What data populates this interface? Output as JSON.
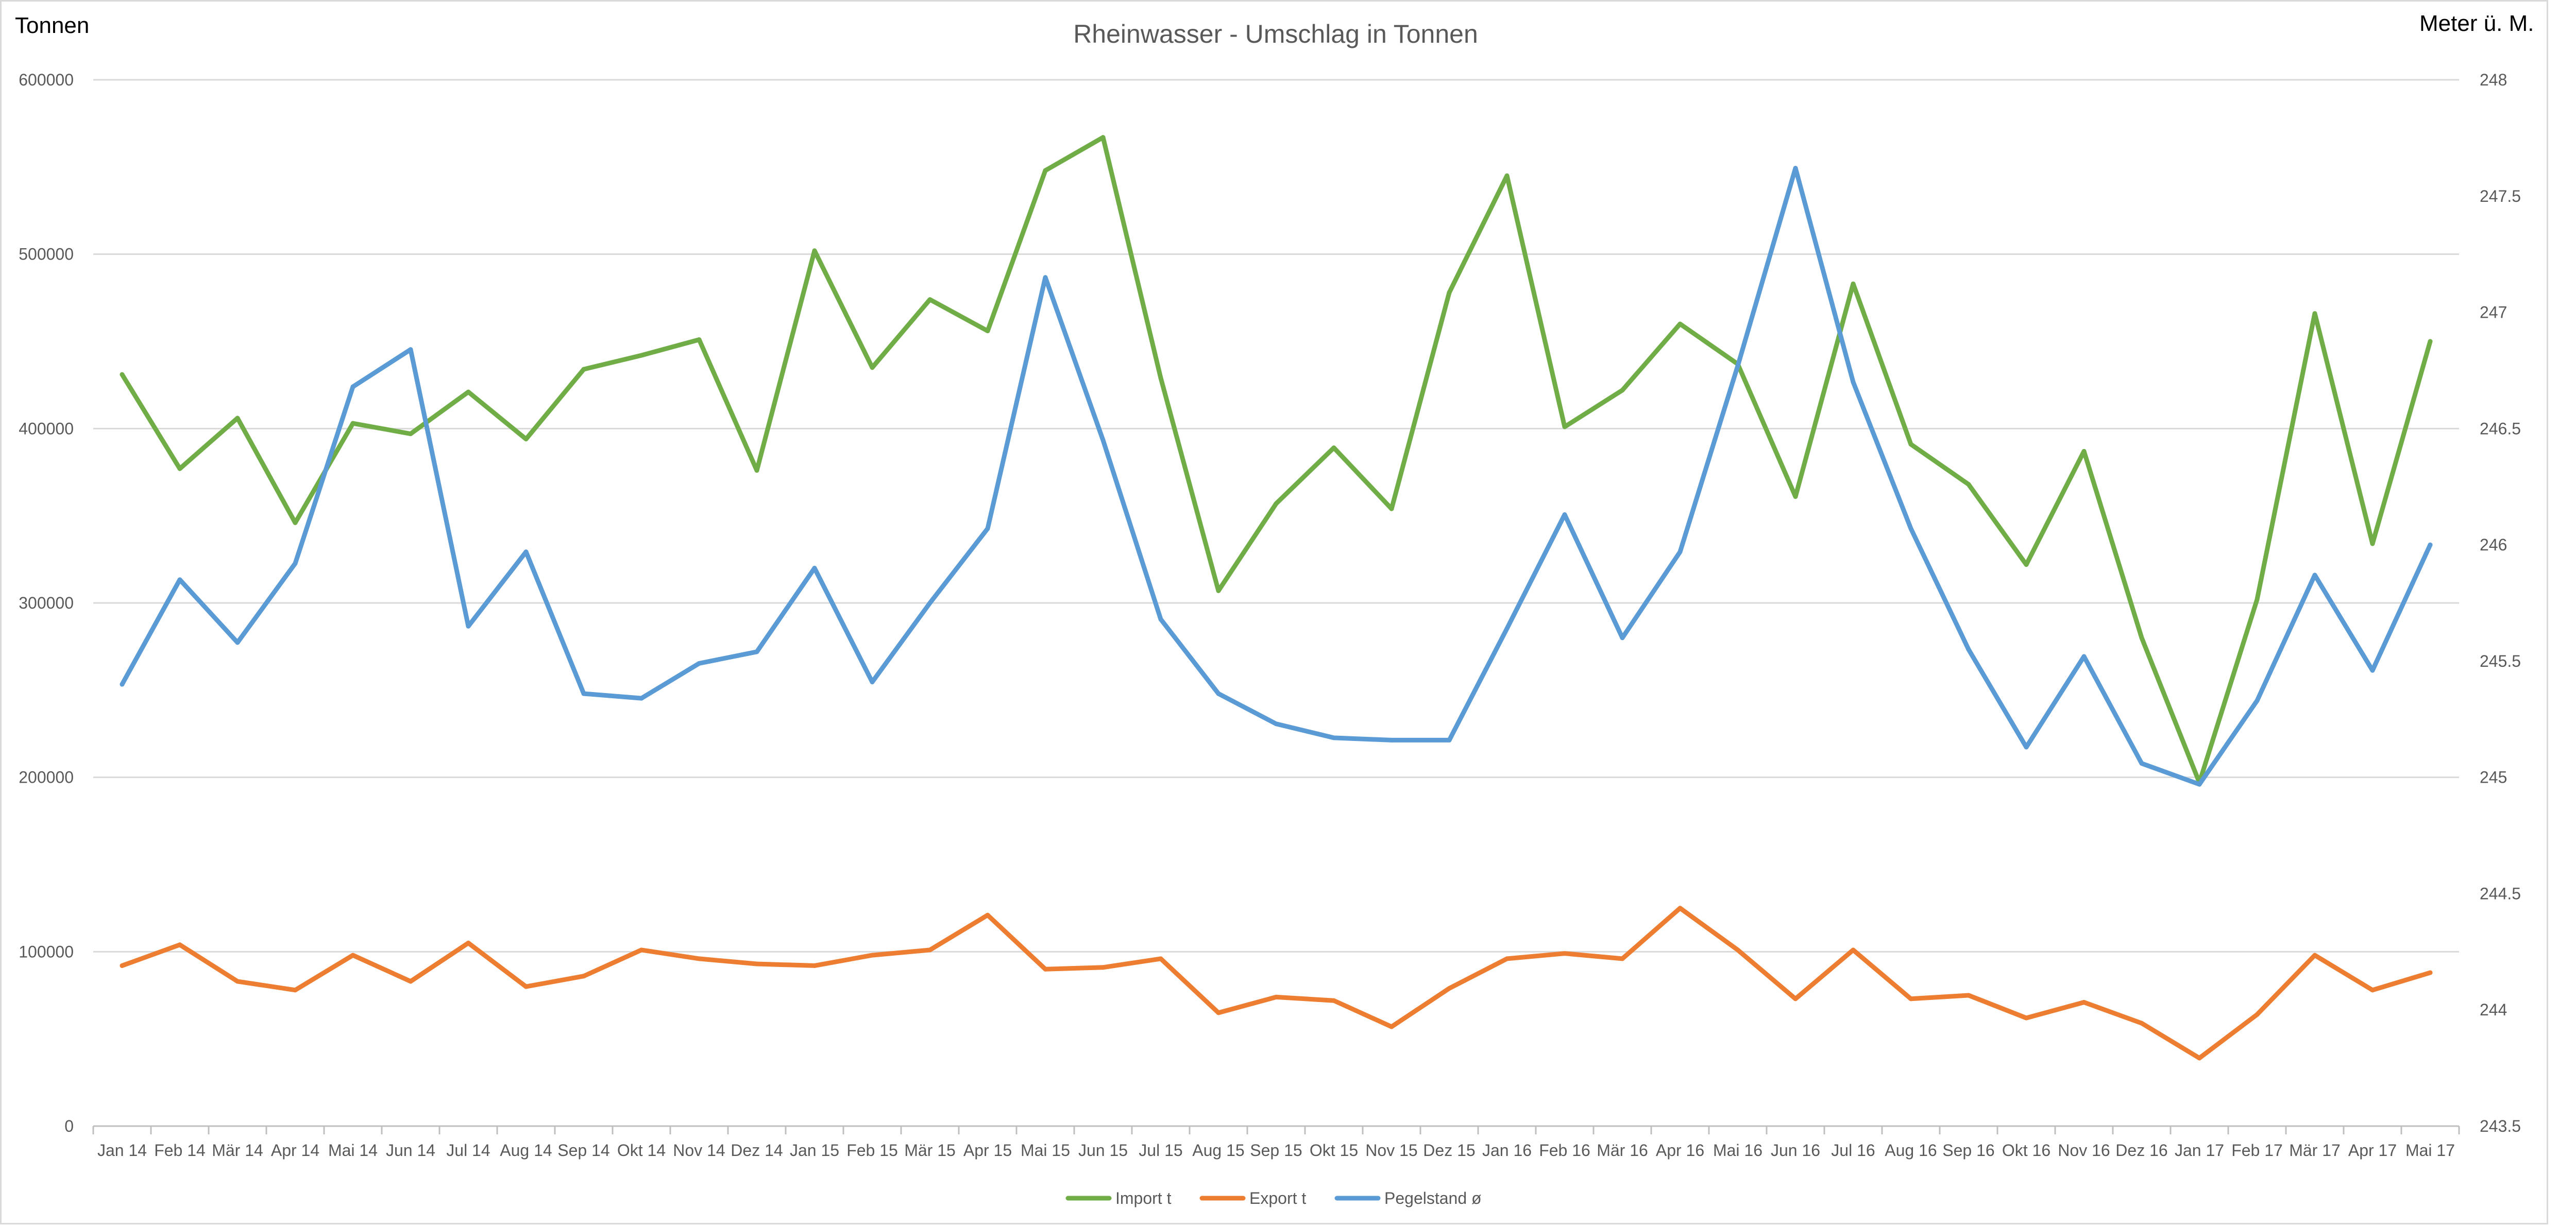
{
  "chart_data": {
    "type": "line",
    "title": "Rheinwasser - Umschlag in Tonnen",
    "ylabel": "Tonnen",
    "y2label": "Meter ü. M.",
    "xlabel": "",
    "ylim": [
      0,
      600000
    ],
    "y2lim": [
      243.5,
      248
    ],
    "yticks": [
      "0",
      "100000",
      "200000",
      "300000",
      "400000",
      "500000",
      "600000"
    ],
    "y2ticks": [
      "243.5",
      "244",
      "244.5",
      "245",
      "245.5",
      "246",
      "246.5",
      "247",
      "247.5",
      "248"
    ],
    "grid": true,
    "legend_position": "bottom",
    "categories": [
      "Jan 14",
      "Feb 14",
      "Mär 14",
      "Apr 14",
      "Mai 14",
      "Jun 14",
      "Jul 14",
      "Aug 14",
      "Sep 14",
      "Okt 14",
      "Nov 14",
      "Dez 14",
      "Jan 15",
      "Feb 15",
      "Mär 15",
      "Apr 15",
      "Mai 15",
      "Jun 15",
      "Jul 15",
      "Aug 15",
      "Sep 15",
      "Okt 15",
      "Nov 15",
      "Dez 15",
      "Jan 16",
      "Feb 16",
      "Mär 16",
      "Apr 16",
      "Mai 16",
      "Jun 16",
      "Jul 16",
      "Aug 16",
      "Sep 16",
      "Okt 16",
      "Nov 16",
      "Dez 16",
      "Jan 17",
      "Feb 17",
      "Mär 17",
      "Apr 17",
      "Mai 17"
    ],
    "series": [
      {
        "name": "Import t",
        "axis": "left",
        "color": "#70ad47",
        "values": [
          431000,
          377000,
          406000,
          346000,
          403000,
          397000,
          421000,
          394000,
          434000,
          442000,
          451000,
          376000,
          502000,
          435000,
          474000,
          456000,
          548000,
          567000,
          429000,
          307000,
          357000,
          389000,
          354000,
          478000,
          545000,
          401000,
          422000,
          460000,
          437000,
          361000,
          483000,
          391000,
          368000,
          322000,
          387000,
          280000,
          197000,
          302000,
          466000,
          334000,
          450000
        ]
      },
      {
        "name": "Export t",
        "axis": "left",
        "color": "#ed7d31",
        "values": [
          92000,
          104000,
          83000,
          78000,
          98000,
          83000,
          105000,
          80000,
          86000,
          101000,
          96000,
          93000,
          92000,
          98000,
          101000,
          121000,
          90000,
          91000,
          96000,
          65000,
          74000,
          72000,
          57000,
          79000,
          96000,
          99000,
          96000,
          125000,
          101000,
          73000,
          101000,
          73000,
          75000,
          62000,
          71000,
          59000,
          39000,
          64000,
          98000,
          78000,
          88000
        ]
      },
      {
        "name": "Pegelstand ø",
        "axis": "right",
        "color": "#5b9bd5",
        "values": [
          245.4,
          245.85,
          245.58,
          245.92,
          246.68,
          246.84,
          245.65,
          245.97,
          245.36,
          245.34,
          245.49,
          245.54,
          245.9,
          245.41,
          245.75,
          246.07,
          247.15,
          246.45,
          245.68,
          245.36,
          245.23,
          245.17,
          245.16,
          245.16,
          245.64,
          246.13,
          245.6,
          245.97,
          246.77,
          247.62,
          246.7,
          246.07,
          245.55,
          245.13,
          245.52,
          245.06,
          244.97,
          245.33,
          245.87,
          245.46,
          246.0
        ]
      }
    ]
  }
}
